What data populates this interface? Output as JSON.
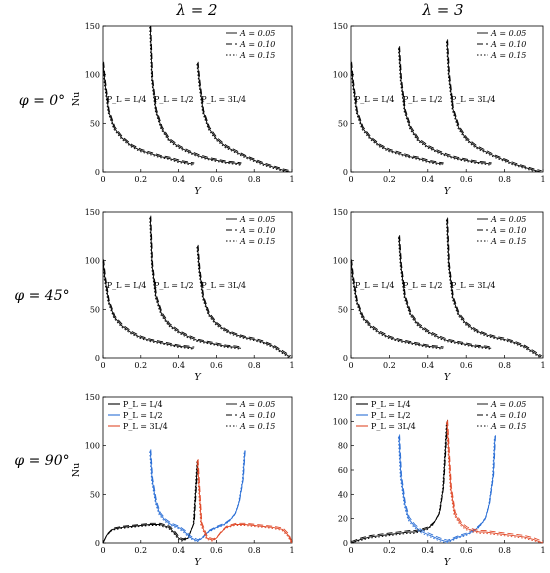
{
  "column_titles": [
    "λ = 2",
    "λ = 3"
  ],
  "row_titles": [
    "φ = 0°",
    "φ = 45°",
    "φ = 90°"
  ],
  "chart_data": [
    {
      "type": "line",
      "panel": "λ=2, φ=0°",
      "xlabel": "Y",
      "ylabel": "Nu",
      "xlim": [
        0,
        1
      ],
      "ylim": [
        0,
        150
      ],
      "xticks": [
        "0",
        "0.2",
        "0.4",
        "0.6",
        "0.8",
        "1"
      ],
      "yticks": [
        "0",
        "50",
        "100",
        "150"
      ],
      "legend": [
        "A = 0.05",
        "A = 0.10",
        "A = 0.15"
      ],
      "annotations": [
        "P_L = L/4",
        "P_L = L/2",
        "P_L = 3L/4"
      ],
      "series": [
        {
          "name": "P_L = L/4",
          "x": [
            0.0,
            0.01,
            0.03,
            0.06,
            0.1,
            0.15,
            0.2,
            0.25,
            0.3,
            0.35,
            0.4,
            0.45,
            0.48
          ],
          "y": [
            112,
            92,
            62,
            45,
            35,
            27,
            22,
            19,
            16,
            14,
            11,
            9,
            8
          ]
        },
        {
          "name": "P_L = L/2",
          "x": [
            0.25,
            0.26,
            0.28,
            0.31,
            0.35,
            0.4,
            0.45,
            0.5,
            0.55,
            0.6,
            0.65,
            0.7,
            0.73
          ],
          "y": [
            150,
            95,
            63,
            45,
            33,
            26,
            21,
            17,
            14,
            12,
            10,
            9,
            8
          ]
        },
        {
          "name": "P_L = 3L/4",
          "x": [
            0.5,
            0.51,
            0.53,
            0.56,
            0.6,
            0.65,
            0.7,
            0.75,
            0.8,
            0.85,
            0.9,
            0.95,
            0.99
          ],
          "y": [
            112,
            92,
            62,
            45,
            34,
            26,
            21,
            16,
            12,
            8,
            5,
            2,
            0
          ]
        }
      ]
    },
    {
      "type": "line",
      "panel": "λ=3, φ=0°",
      "xlabel": "Y",
      "ylabel": "",
      "xlim": [
        0,
        1
      ],
      "ylim": [
        0,
        150
      ],
      "xticks": [
        "0",
        "0.2",
        "0.4",
        "0.6",
        "0.8",
        "1"
      ],
      "yticks": [
        "0",
        "50",
        "100",
        "150"
      ],
      "legend": [
        "A = 0.05",
        "A = 0.10",
        "A = 0.15"
      ],
      "annotations": [
        "P_L = L/4",
        "P_L = L/2",
        "P_L = 3L/4"
      ],
      "series": [
        {
          "name": "P_L = L/4",
          "x": [
            0.0,
            0.01,
            0.03,
            0.06,
            0.1,
            0.15,
            0.2,
            0.25,
            0.3,
            0.35,
            0.4,
            0.45,
            0.48
          ],
          "y": [
            112,
            92,
            62,
            45,
            35,
            27,
            22,
            19,
            16,
            14,
            11,
            9,
            8
          ]
        },
        {
          "name": "P_L = L/2",
          "x": [
            0.25,
            0.26,
            0.28,
            0.31,
            0.35,
            0.4,
            0.45,
            0.5,
            0.55,
            0.6,
            0.65,
            0.7,
            0.73
          ],
          "y": [
            128,
            95,
            63,
            45,
            33,
            26,
            21,
            17,
            14,
            12,
            10,
            9,
            8
          ]
        },
        {
          "name": "P_L = 3L/4",
          "x": [
            0.5,
            0.51,
            0.53,
            0.56,
            0.6,
            0.65,
            0.7,
            0.75,
            0.8,
            0.85,
            0.9,
            0.95,
            0.99
          ],
          "y": [
            135,
            100,
            65,
            46,
            34,
            26,
            21,
            16,
            12,
            8,
            5,
            2,
            0
          ]
        }
      ]
    },
    {
      "type": "line",
      "panel": "λ=2, φ=45°",
      "xlabel": "Y",
      "ylabel": "",
      "xlim": [
        0,
        1
      ],
      "ylim": [
        0,
        150
      ],
      "xticks": [
        "0",
        "0.2",
        "0.4",
        "0.6",
        "0.8",
        "1"
      ],
      "yticks": [
        "0",
        "50",
        "100",
        "150"
      ],
      "legend": [
        "A = 0.05",
        "A = 0.10",
        "A = 0.15"
      ],
      "annotations": [
        "P_L = L/4",
        "P_L = L/2",
        "P_L = 3L/4"
      ],
      "series": [
        {
          "name": "P_L = L/4",
          "x": [
            0.0,
            0.01,
            0.03,
            0.06,
            0.1,
            0.15,
            0.2,
            0.25,
            0.3,
            0.35,
            0.4,
            0.45,
            0.48
          ],
          "y": [
            100,
            82,
            58,
            42,
            33,
            26,
            21,
            18,
            16,
            14,
            12,
            11,
            10
          ]
        },
        {
          "name": "P_L = L/2",
          "x": [
            0.25,
            0.26,
            0.28,
            0.31,
            0.35,
            0.4,
            0.45,
            0.5,
            0.55,
            0.6,
            0.65,
            0.7,
            0.73
          ],
          "y": [
            145,
            95,
            63,
            45,
            34,
            27,
            22,
            18,
            16,
            14,
            12,
            11,
            10
          ]
        },
        {
          "name": "P_L = 3L/4",
          "x": [
            0.5,
            0.51,
            0.53,
            0.56,
            0.6,
            0.65,
            0.7,
            0.75,
            0.8,
            0.85,
            0.9,
            0.95,
            0.99
          ],
          "y": [
            115,
            90,
            62,
            45,
            35,
            28,
            24,
            21,
            19,
            16,
            12,
            6,
            1
          ]
        }
      ]
    },
    {
      "type": "line",
      "panel": "λ=3, φ=45°",
      "xlabel": "Y",
      "ylabel": "",
      "xlim": [
        0,
        1
      ],
      "ylim": [
        0,
        150
      ],
      "xticks": [
        "0",
        "0.2",
        "0.4",
        "0.6",
        "0.8",
        "1"
      ],
      "yticks": [
        "0",
        "50",
        "100",
        "150"
      ],
      "legend": [
        "A = 0.05",
        "A = 0.10",
        "A = 0.15"
      ],
      "annotations": [
        "P_L = L/4",
        "P_L = L/2",
        "P_L = 3L/4"
      ],
      "series": [
        {
          "name": "P_L = L/4",
          "x": [
            0.0,
            0.01,
            0.03,
            0.06,
            0.1,
            0.15,
            0.2,
            0.25,
            0.3,
            0.35,
            0.4,
            0.45,
            0.48
          ],
          "y": [
            100,
            82,
            58,
            42,
            33,
            26,
            21,
            18,
            16,
            14,
            12,
            11,
            10
          ]
        },
        {
          "name": "P_L = L/2",
          "x": [
            0.25,
            0.26,
            0.28,
            0.31,
            0.35,
            0.4,
            0.45,
            0.5,
            0.55,
            0.6,
            0.65,
            0.7,
            0.73
          ],
          "y": [
            125,
            95,
            63,
            45,
            34,
            27,
            22,
            18,
            16,
            14,
            12,
            11,
            10
          ]
        },
        {
          "name": "P_L = 3L/4",
          "x": [
            0.5,
            0.51,
            0.53,
            0.56,
            0.6,
            0.65,
            0.7,
            0.75,
            0.8,
            0.85,
            0.9,
            0.95,
            0.99
          ],
          "y": [
            143,
            95,
            62,
            45,
            35,
            28,
            24,
            21,
            19,
            16,
            12,
            6,
            1
          ]
        }
      ]
    },
    {
      "type": "line",
      "panel": "λ=2, φ=90°",
      "xlabel": "Y",
      "ylabel": "Nu",
      "xlim": [
        0,
        1
      ],
      "ylim": [
        0,
        150
      ],
      "xticks": [
        "0",
        "0.2",
        "0.4",
        "0.6",
        "0.8",
        "1"
      ],
      "yticks": [
        "0",
        "50",
        "100",
        "150"
      ],
      "legend": [
        "A = 0.05",
        "A = 0.10",
        "A = 0.15"
      ],
      "series_legend": [
        "P_L = L/4",
        "P_L = L/2",
        "P_L = 3L/4"
      ],
      "series": [
        {
          "name": "P_L = L/4",
          "color": "#000000",
          "x": [
            0.0,
            0.02,
            0.05,
            0.1,
            0.15,
            0.2,
            0.25,
            0.3,
            0.35,
            0.38,
            0.4,
            0.42,
            0.45,
            0.48,
            0.5
          ],
          "y": [
            0,
            8,
            14,
            16,
            17,
            18,
            19,
            19,
            16,
            10,
            5,
            3,
            5,
            20,
            85
          ]
        },
        {
          "name": "P_L = L/2",
          "color": "#2b6fd6",
          "x": [
            0.25,
            0.26,
            0.28,
            0.3,
            0.33,
            0.36,
            0.4,
            0.43,
            0.46,
            0.5,
            0.53,
            0.56,
            0.6,
            0.64,
            0.67,
            0.7,
            0.72,
            0.74,
            0.75
          ],
          "y": [
            95,
            65,
            42,
            30,
            23,
            19,
            16,
            12,
            6,
            2,
            6,
            12,
            16,
            19,
            23,
            30,
            42,
            65,
            95
          ]
        },
        {
          "name": "P_L = 3L/4",
          "color": "#e04a2a",
          "x": [
            0.5,
            0.52,
            0.55,
            0.58,
            0.6,
            0.62,
            0.65,
            0.7,
            0.75,
            0.8,
            0.85,
            0.9,
            0.95,
            0.98,
            1.0
          ],
          "y": [
            85,
            20,
            5,
            3,
            5,
            10,
            16,
            19,
            19,
            18,
            17,
            16,
            14,
            8,
            0
          ]
        }
      ]
    },
    {
      "type": "line",
      "panel": "λ=3, φ=90°",
      "xlabel": "Y",
      "ylabel": "",
      "xlim": [
        0,
        1
      ],
      "ylim": [
        0,
        120
      ],
      "xticks": [
        "0",
        "0.2",
        "0.4",
        "0.6",
        "0.8",
        "1"
      ],
      "yticks": [
        "0",
        "20",
        "40",
        "60",
        "80",
        "100",
        "120"
      ],
      "legend": [
        "A = 0.05",
        "A = 0.10",
        "A = 0.15"
      ],
      "series_legend": [
        "P_L = L/4",
        "P_L = L/2",
        "P_L = 3L/4"
      ],
      "series": [
        {
          "name": "P_L = L/4",
          "color": "#000000",
          "x": [
            0.0,
            0.05,
            0.1,
            0.15,
            0.2,
            0.25,
            0.3,
            0.33,
            0.36,
            0.4,
            0.43,
            0.46,
            0.48,
            0.5
          ],
          "y": [
            0,
            3,
            5,
            6,
            7,
            8,
            9,
            9,
            10,
            12,
            16,
            24,
            45,
            100
          ]
        },
        {
          "name": "P_L = L/2",
          "color": "#2b6fd6",
          "x": [
            0.25,
            0.26,
            0.28,
            0.3,
            0.33,
            0.36,
            0.4,
            0.43,
            0.46,
            0.5,
            0.53,
            0.56,
            0.6,
            0.64,
            0.67,
            0.7,
            0.72,
            0.74,
            0.75
          ],
          "y": [
            88,
            55,
            32,
            20,
            14,
            10,
            7,
            5,
            3,
            1,
            3,
            5,
            7,
            10,
            14,
            20,
            32,
            55,
            88
          ]
        },
        {
          "name": "P_L = 3L/4",
          "color": "#e04a2a",
          "x": [
            0.5,
            0.52,
            0.54,
            0.57,
            0.6,
            0.64,
            0.67,
            0.7,
            0.75,
            0.8,
            0.85,
            0.9,
            0.95,
            1.0
          ],
          "y": [
            100,
            45,
            24,
            16,
            12,
            10,
            9,
            9,
            8,
            7,
            6,
            5,
            3,
            0
          ]
        }
      ]
    }
  ]
}
